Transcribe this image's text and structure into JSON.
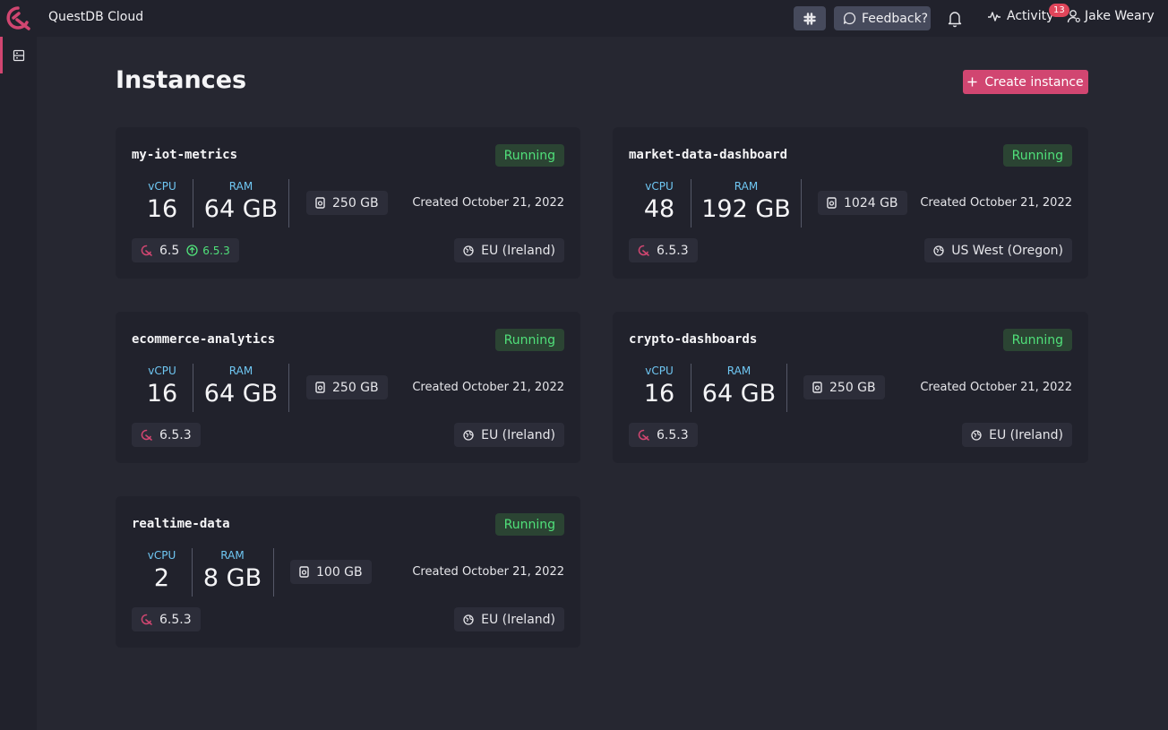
{
  "app": {
    "title": "QuestDB Cloud"
  },
  "header": {
    "feedback_label": "Feedback?",
    "activity_label": "Activity",
    "activity_badge": "13",
    "user_name": "Jake Weary"
  },
  "main": {
    "title": "Instances",
    "create_label": "Create instance"
  },
  "labels": {
    "vcpu": "vCPU",
    "ram": "RAM"
  },
  "instances": [
    {
      "name": "my-iot-metrics",
      "status": "Running",
      "vcpu": "16",
      "ram": "64 GB",
      "storage": "250 GB",
      "created": "Created October 21, 2022",
      "version": "6.5",
      "upgrade_version": "6.5.3",
      "region": "EU (Ireland)"
    },
    {
      "name": "market-data-dashboard",
      "status": "Running",
      "vcpu": "48",
      "ram": "192 GB",
      "storage": "1024 GB",
      "created": "Created October 21, 2022",
      "version": "6.5.3",
      "region": "US West (Oregon)"
    },
    {
      "name": "ecommerce-analytics",
      "status": "Running",
      "vcpu": "16",
      "ram": "64 GB",
      "storage": "250 GB",
      "created": "Created October 21, 2022",
      "version": "6.5.3",
      "region": "EU (Ireland)"
    },
    {
      "name": "crypto-dashboards",
      "status": "Running",
      "vcpu": "16",
      "ram": "64 GB",
      "storage": "250 GB",
      "created": "Created October 21, 2022",
      "version": "6.5.3",
      "region": "EU (Ireland)"
    },
    {
      "name": "realtime-data",
      "status": "Running",
      "vcpu": "2",
      "ram": "8 GB",
      "storage": "100 GB",
      "created": "Created October 21, 2022",
      "version": "6.5.3",
      "region": "EU (Ireland)"
    }
  ],
  "colors": {
    "accent": "#d14671",
    "running": "#50e07a",
    "label": "#6fc7f3"
  },
  "icons": [
    "questdb-logo-icon",
    "slack-icon",
    "chat-icon",
    "bell-icon",
    "activity-icon",
    "user-icon",
    "instances-icon",
    "plus-icon",
    "storage-icon",
    "globe-icon",
    "version-icon",
    "upgrade-icon"
  ]
}
